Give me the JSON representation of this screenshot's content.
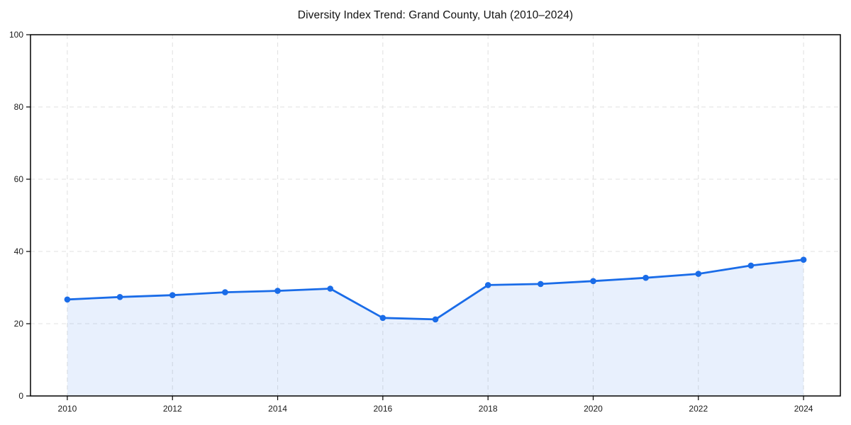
{
  "page": {
    "background": "#ffffff"
  },
  "chart_data": {
    "type": "area",
    "title": "Diversity Index Trend: Grand County, Utah (2010–2024)",
    "x": [
      2010,
      2011,
      2012,
      2013,
      2014,
      2015,
      2016,
      2017,
      2018,
      2019,
      2020,
      2021,
      2022,
      2023,
      2024
    ],
    "series": [
      {
        "name": "Diversity Index",
        "values": [
          26.7,
          27.4,
          27.9,
          28.7,
          29.1,
          29.7,
          21.6,
          21.2,
          30.7,
          31.0,
          31.8,
          32.7,
          33.8,
          36.1,
          37.7
        ]
      }
    ],
    "xlabel": "",
    "ylabel": "",
    "xlim": [
      2009.3,
      2024.7
    ],
    "ylim": [
      0,
      100
    ],
    "xticks": [
      2010,
      2012,
      2014,
      2016,
      2018,
      2020,
      2022,
      2024
    ],
    "yticks": [
      0,
      20,
      40,
      60,
      80,
      100
    ],
    "grid": "dashed-both",
    "legend": "none",
    "marker": "circle",
    "colors": {
      "line": "#1a6ce8",
      "marker": "#1a6ce8",
      "fill": "rgba(26,108,232,0.10)",
      "grid": "#e2e2e2",
      "spine": "#000000",
      "tick_label": "#1a1a1a",
      "title": "#111111"
    }
  }
}
